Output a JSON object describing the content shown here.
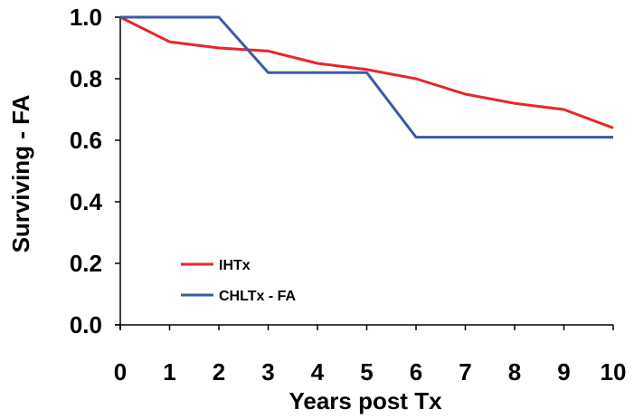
{
  "chart_data": {
    "type": "line",
    "title": "",
    "xlabel": "Years post Tx",
    "ylabel": "Surviving - FA",
    "xlim": [
      0,
      10
    ],
    "ylim": [
      0.0,
      1.0
    ],
    "x_ticks": [
      0,
      1,
      2,
      3,
      4,
      5,
      6,
      7,
      8,
      9,
      10
    ],
    "y_ticks": [
      "0.0",
      "0.2",
      "0.4",
      "0.6",
      "0.8",
      "1.0"
    ],
    "grid": false,
    "legend_position": "bottom-left",
    "series": [
      {
        "name": "IHTx",
        "color": "#e8262a",
        "x": [
          0,
          1,
          2,
          3,
          4,
          5,
          6,
          7,
          8,
          9,
          10
        ],
        "y": [
          1.0,
          0.92,
          0.9,
          0.89,
          0.85,
          0.83,
          0.8,
          0.75,
          0.72,
          0.7,
          0.64
        ]
      },
      {
        "name": "CHLTx - FA",
        "color": "#3a5aa6",
        "x": [
          0,
          2,
          3,
          5,
          6,
          10
        ],
        "y": [
          1.0,
          1.0,
          0.82,
          0.82,
          0.61,
          0.61
        ]
      }
    ]
  }
}
